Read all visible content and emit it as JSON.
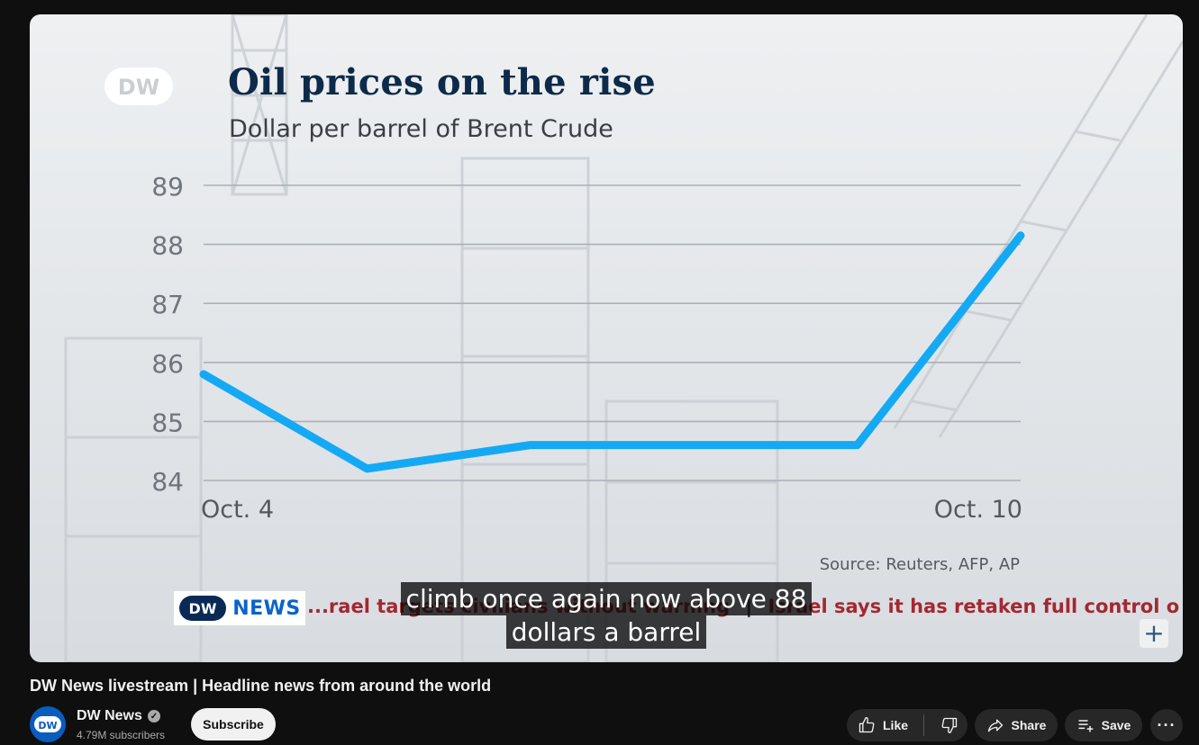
{
  "chart_data": {
    "type": "line",
    "title": "Oil prices on the rise",
    "subtitle": "Dollar per barrel of Brent Crude",
    "source": "Source: Reuters, AFP, AP",
    "x_labels": [
      "Oct. 4",
      "Oct. 10"
    ],
    "series": [
      {
        "values": [
          85.8,
          84.2,
          84.6,
          84.6,
          84.6,
          88.15
        ]
      }
    ],
    "ylim": [
      84,
      89
    ],
    "yticks": [
      84,
      85,
      86,
      87,
      88,
      89
    ],
    "grid": true,
    "line_color": "#14a9f5"
  },
  "overlay": {
    "dw_logo_text": "DW",
    "news_brand": "NEWS",
    "ticker": [
      "...rael targets civilians without warning",
      "Israel says it has retaken full control o"
    ],
    "ticker_separator": "|",
    "caption_lines": [
      "climb once again now above 88",
      "dollars a barrel"
    ],
    "plus_label": "+"
  },
  "video": {
    "title": "DW News livestream | Headline news from around the world",
    "channel": "DW News",
    "subscribers": "4.79M subscribers",
    "avatar_text": "DW",
    "subscribe_label": "Subscribe",
    "like_label": "Like",
    "share_label": "Share",
    "save_label": "Save",
    "more_label": "···"
  },
  "colors": {
    "accent_blue": "#0a64c8",
    "ticker_red": "#a32831",
    "title_navy": "#0d2a4a"
  }
}
